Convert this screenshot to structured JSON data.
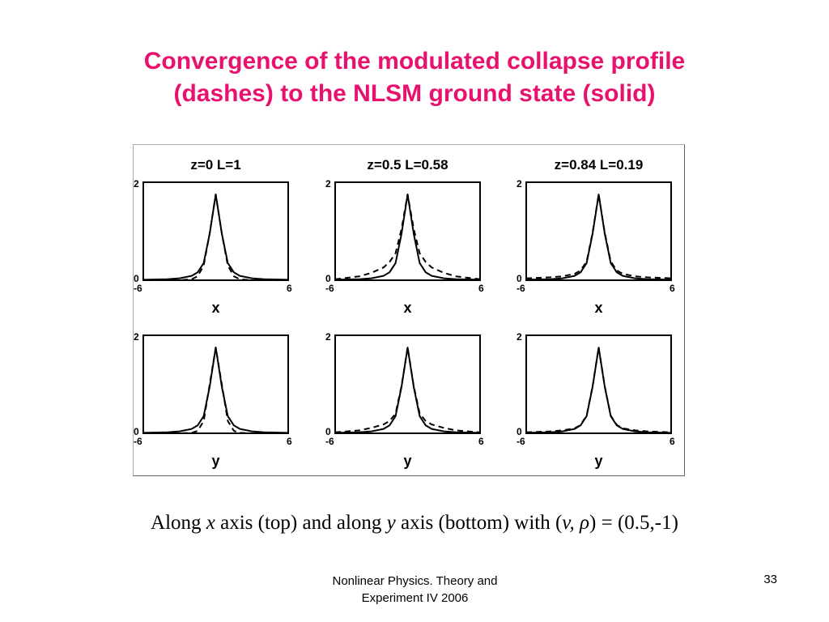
{
  "slide": {
    "title_line1": "Convergence of the modulated collapse profile",
    "title_line2": "(dashes) to the NLSM ground state (solid)",
    "caption": {
      "t1": "Along ",
      "x": "x",
      "t2": " axis (top) and along ",
      "y": "y",
      "t3": " axis (bottom) with (",
      "vrho": "v, ρ",
      "t4": ") = (0.5,-1)"
    },
    "footer_line1": "Nonlinear Physics. Theory and",
    "footer_line2": "Experiment IV 2006",
    "page_number": "33"
  },
  "colors": {
    "title": "#e8116e",
    "lines": "#000000"
  },
  "chart_data": [
    {
      "type": "line",
      "panel": "top-left",
      "title": "z=0   L=1",
      "xlabel": "x",
      "xlim": [
        -6,
        6
      ],
      "ylim": [
        0,
        2
      ],
      "xticks": [
        "-6",
        "6"
      ],
      "yticks": [
        "0",
        "2"
      ],
      "series": [
        {
          "style": "solid",
          "x": [
            -6,
            -4,
            -3,
            -2,
            -1.5,
            -1,
            -0.5,
            0,
            0.5,
            1,
            1.5,
            2,
            3,
            4,
            6
          ],
          "values": [
            0.01,
            0.02,
            0.04,
            0.09,
            0.16,
            0.35,
            0.95,
            1.75,
            0.95,
            0.35,
            0.16,
            0.09,
            0.04,
            0.02,
            0.01
          ]
        },
        {
          "style": "dashed",
          "x": [
            -6,
            -4,
            -3,
            -2,
            -1.5,
            -1,
            -0.5,
            0,
            0.5,
            1,
            1.5,
            2,
            3,
            4,
            6
          ],
          "values": [
            0.0,
            0.0,
            0.0,
            0.02,
            0.08,
            0.3,
            0.95,
            1.75,
            0.95,
            0.3,
            0.08,
            0.02,
            0.0,
            0.0,
            0.0
          ]
        }
      ]
    },
    {
      "type": "line",
      "panel": "top-middle",
      "title": "z=0.5   L=0.58",
      "xlabel": "x",
      "xlim": [
        -6,
        6
      ],
      "ylim": [
        0,
        2
      ],
      "xticks": [
        "-6",
        "6"
      ],
      "yticks": [
        "0",
        "2"
      ],
      "series": [
        {
          "style": "solid",
          "x": [
            -6,
            -4,
            -3,
            -2,
            -1.5,
            -1,
            -0.5,
            0,
            0.5,
            1,
            1.5,
            2,
            3,
            4,
            6
          ],
          "values": [
            0.01,
            0.02,
            0.04,
            0.09,
            0.16,
            0.35,
            0.95,
            1.75,
            0.95,
            0.35,
            0.16,
            0.09,
            0.04,
            0.02,
            0.01
          ]
        },
        {
          "style": "dashed",
          "x": [
            -6,
            -4,
            -3,
            -2,
            -1.5,
            -1,
            -0.5,
            0,
            0.5,
            1,
            1.5,
            2,
            3,
            4,
            6
          ],
          "values": [
            0.02,
            0.08,
            0.15,
            0.26,
            0.37,
            0.55,
            1.05,
            1.75,
            1.05,
            0.55,
            0.37,
            0.26,
            0.15,
            0.08,
            0.02
          ]
        }
      ]
    },
    {
      "type": "line",
      "panel": "top-right",
      "title": "z=0.84   L=0.19",
      "xlabel": "x",
      "xlim": [
        -6,
        6
      ],
      "ylim": [
        0,
        2
      ],
      "xticks": [
        "-6",
        "6"
      ],
      "yticks": [
        "0",
        "2"
      ],
      "series": [
        {
          "style": "solid",
          "x": [
            -6,
            -4,
            -3,
            -2,
            -1.5,
            -1,
            -0.5,
            0,
            0.5,
            1,
            1.5,
            2,
            3,
            4,
            6
          ],
          "values": [
            0.01,
            0.02,
            0.04,
            0.09,
            0.16,
            0.35,
            0.95,
            1.75,
            0.95,
            0.35,
            0.16,
            0.09,
            0.04,
            0.02,
            0.01
          ]
        },
        {
          "style": "dashed",
          "x": [
            -6,
            -4,
            -3,
            -2,
            -1.5,
            -1,
            -0.5,
            0,
            0.5,
            1,
            1.5,
            2,
            3,
            4,
            6
          ],
          "values": [
            0.04,
            0.06,
            0.08,
            0.13,
            0.2,
            0.38,
            0.97,
            1.75,
            0.97,
            0.38,
            0.2,
            0.13,
            0.08,
            0.06,
            0.04
          ]
        }
      ]
    },
    {
      "type": "line",
      "panel": "bottom-left",
      "xlabel": "y",
      "xlim": [
        -6,
        6
      ],
      "ylim": [
        0,
        2
      ],
      "xticks": [
        "-6",
        "6"
      ],
      "yticks": [
        "0",
        "2"
      ],
      "series": [
        {
          "style": "solid",
          "x": [
            -6,
            -4,
            -3,
            -2,
            -1.5,
            -1,
            -0.5,
            0,
            0.5,
            1,
            1.5,
            2,
            3,
            4,
            6
          ],
          "values": [
            0.01,
            0.02,
            0.04,
            0.09,
            0.16,
            0.35,
            0.95,
            1.75,
            0.95,
            0.35,
            0.16,
            0.09,
            0.04,
            0.02,
            0.01
          ]
        },
        {
          "style": "dashed",
          "x": [
            -6,
            -4,
            -3,
            -2,
            -1.5,
            -1,
            -0.5,
            0,
            0.5,
            1,
            1.5,
            2,
            3,
            4,
            6
          ],
          "values": [
            0.0,
            0.0,
            0.0,
            0.01,
            0.05,
            0.25,
            1.0,
            1.75,
            1.0,
            0.25,
            0.05,
            0.01,
            0.0,
            0.0,
            0.0
          ]
        }
      ]
    },
    {
      "type": "line",
      "panel": "bottom-middle",
      "xlabel": "y",
      "xlim": [
        -6,
        6
      ],
      "ylim": [
        0,
        2
      ],
      "xticks": [
        "-6",
        "6"
      ],
      "yticks": [
        "0",
        "2"
      ],
      "series": [
        {
          "style": "solid",
          "x": [
            -6,
            -4,
            -3,
            -2,
            -1.5,
            -1,
            -0.5,
            0,
            0.5,
            1,
            1.5,
            2,
            3,
            4,
            6
          ],
          "values": [
            0.01,
            0.02,
            0.04,
            0.09,
            0.16,
            0.35,
            0.95,
            1.75,
            0.95,
            0.35,
            0.16,
            0.09,
            0.04,
            0.02,
            0.01
          ]
        },
        {
          "style": "dashed",
          "x": [
            -6,
            -4,
            -3,
            -2,
            -1.5,
            -1,
            -0.5,
            0,
            0.5,
            1,
            1.5,
            2,
            3,
            4,
            6
          ],
          "values": [
            0.02,
            0.06,
            0.11,
            0.18,
            0.25,
            0.4,
            0.97,
            1.75,
            0.97,
            0.4,
            0.25,
            0.18,
            0.11,
            0.06,
            0.02
          ]
        }
      ]
    },
    {
      "type": "line",
      "panel": "bottom-right",
      "xlabel": "y",
      "xlim": [
        -6,
        6
      ],
      "ylim": [
        0,
        2
      ],
      "xticks": [
        "-6",
        "6"
      ],
      "yticks": [
        "0",
        "2"
      ],
      "series": [
        {
          "style": "solid",
          "x": [
            -6,
            -4,
            -3,
            -2,
            -1.5,
            -1,
            -0.5,
            0,
            0.5,
            1,
            1.5,
            2,
            3,
            4,
            6
          ],
          "values": [
            0.01,
            0.02,
            0.04,
            0.09,
            0.16,
            0.35,
            0.95,
            1.75,
            0.95,
            0.35,
            0.16,
            0.09,
            0.04,
            0.02,
            0.01
          ]
        },
        {
          "style": "dashed",
          "x": [
            -6,
            -4,
            -3,
            -2,
            -1.5,
            -1,
            -0.5,
            0,
            0.5,
            1,
            1.5,
            2,
            3,
            4,
            6
          ],
          "values": [
            0.02,
            0.04,
            0.06,
            0.1,
            0.17,
            0.36,
            0.96,
            1.75,
            0.96,
            0.36,
            0.17,
            0.1,
            0.06,
            0.04,
            0.02
          ]
        }
      ]
    }
  ]
}
